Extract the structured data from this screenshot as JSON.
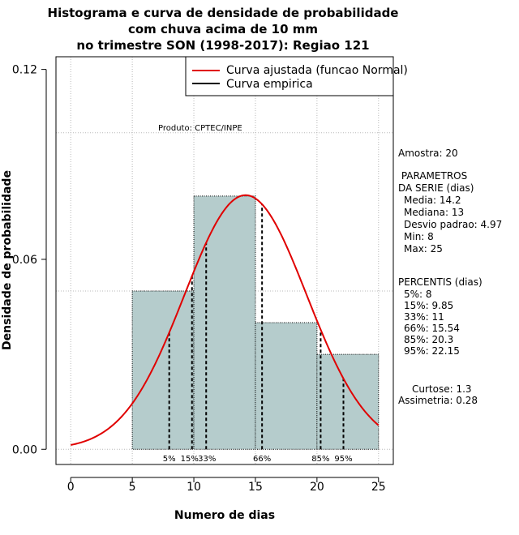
{
  "chart_data": {
    "type": "bar",
    "title_lines": [
      "Histograma e curva de densidade de probabilidade",
      "com chuva acima de 10 mm",
      "no trimestre SON (1998-2017): Regiao 121"
    ],
    "xlabel": "Numero de dias",
    "ylabel": "Densidade de probabilidade",
    "xlim": [
      -1.2,
      26.2
    ],
    "ylim": [
      -0.0048,
      0.124
    ],
    "x_ticks": [
      0,
      5,
      10,
      15,
      20,
      25
    ],
    "y_ticks": [
      0.0,
      0.06,
      0.12
    ],
    "y_tick_labels": [
      "0.00",
      "0.06",
      "0.12"
    ],
    "grid_x": [
      0,
      5,
      10,
      15,
      20,
      25
    ],
    "grid_y": [
      0.0,
      0.05,
      0.1
    ],
    "bins": [
      {
        "from": 5,
        "to": 10,
        "density": 0.05
      },
      {
        "from": 10,
        "to": 15,
        "density": 0.08
      },
      {
        "from": 15,
        "to": 20,
        "density": 0.04
      },
      {
        "from": 20,
        "to": 25,
        "density": 0.03
      }
    ],
    "bar_color": "#b5cccc",
    "fit_curve": {
      "name": "Curva ajustada (funcao Normal)",
      "mean": 14.2,
      "sd": 4.97,
      "from": 0,
      "to": 25,
      "color": "#e00000"
    },
    "empirical_curve": {
      "name": "Curva empirica",
      "color": "#000000"
    },
    "percentiles": [
      {
        "label": "5%",
        "value": 8
      },
      {
        "label": "15%",
        "value": 9.85
      },
      {
        "label": "33%",
        "value": 11
      },
      {
        "label": "66%",
        "value": 15.54
      },
      {
        "label": "85%",
        "value": 20.3
      },
      {
        "label": "95%",
        "value": 22.15
      }
    ],
    "legend": [
      "Curva ajustada (funcao Normal)",
      "Curva empirica"
    ],
    "legend_position": "top-right",
    "annotation": "Produto: CPTEC/INPE"
  },
  "stats": {
    "sample": "Amostra: 20",
    "params_header": " PARAMETROS",
    "params_sub": "DA SERIE (dias)",
    "params": [
      "Media: 14.2",
      "Mediana: 13",
      "Desvio padrao: 4.97",
      "Min: 8",
      "Max: 25"
    ],
    "percentis_header": "PERCENTIS (dias)",
    "percentis": [
      "5%: 8",
      "15%: 9.85",
      "33%: 11",
      "66%: 15.54",
      "85%: 20.3",
      "95%: 22.15"
    ],
    "curtose": "Curtose: 1.3",
    "assimetria": "Assimetria: 0.28"
  }
}
